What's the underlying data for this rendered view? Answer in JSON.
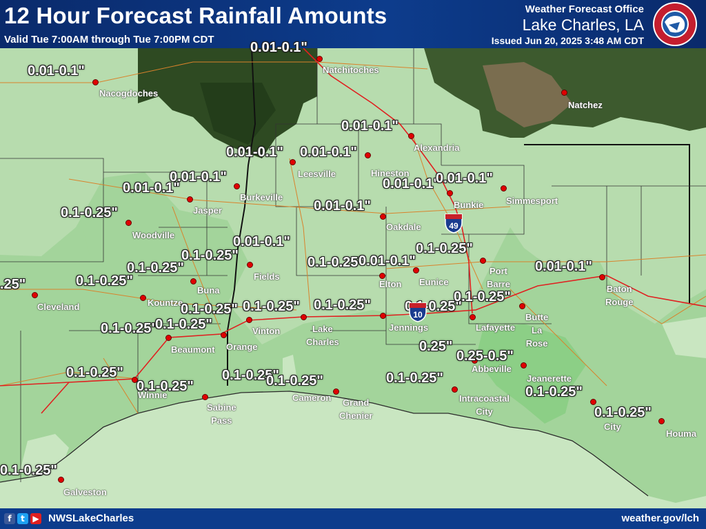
{
  "header": {
    "title": "12 Hour Forecast Rainfall Amounts",
    "subtitle": "Valid Tue 7:00AM through Tue 7:00PM CDT",
    "office_line1": "Weather Forecast Office",
    "office_line2": "Lake Charles, LA",
    "issued": "Issued Jun 20, 2025 3:48 AM CDT"
  },
  "logo": {
    "icon": "nws-logo-icon",
    "text": "NATIONAL WEATHER SERVICE"
  },
  "footer": {
    "social_icons": [
      "facebook-icon",
      "twitter-icon",
      "youtube-icon"
    ],
    "handle": "NWSLakeCharles",
    "site": "weather.gov/lch"
  },
  "colors": {
    "header": "#0d3c8c",
    "light_rain": "#b7dcae",
    "moderate_rain": "#8ccf86",
    "heavier_rain": "#6fbf6a",
    "city_dot": "#e00000"
  },
  "cities": [
    "Natchitoches",
    "Nacogdoches",
    "Natchez",
    "Alexandria",
    "Leesville",
    "Hineston",
    "Burkeville",
    "Simmesport",
    "Bunkie",
    "Jasper",
    "Oakdale",
    "Woodville",
    "Fields",
    "Port\nBarre",
    "Eunice",
    "Elton",
    "Baton\nRouge",
    "Buna",
    "Cleveland",
    "Kountze",
    "Butte\nLa\nRose",
    "Lafayette",
    "Jennings",
    "Vinton",
    "Lake\nCharles",
    "Orange",
    "Beaumont",
    "Abbeville",
    "Jeanerette",
    "Winnie",
    "Sabine\nPass",
    "Cameron",
    "Grand\nChenier",
    "Intracoastal\nCity",
    "City",
    "Houma",
    "Galveston"
  ],
  "rain_labels": [
    "0.01-0.1\"",
    "0.01-0.1\"",
    "0.01-0.1\"",
    "0.01-0.1\"",
    "0.01-0.1\"",
    "0.01-0.1\"",
    "0.01-0.1\"",
    "0.01-0.1\"",
    "0.01-0.1\"",
    "0.1-0.25\"",
    "0.01-0.1\"",
    "0.1-0.25\"",
    "0.1-0.25\"",
    "0.01-0.1\"",
    "0.1-0.25\"",
    "0.1-0.25\"",
    "0.01-0.1\"",
    ".25\"",
    "0.1-0.25\"",
    "0.1-0.25\"",
    "0.1-0.25\"",
    "0.1-0.25\"",
    "0.1-0.25\"",
    "0.1-0.25\"",
    "0.1-0.25\"",
    "0.1-0.25\"",
    "0.1-0.25\"",
    "0.25\"",
    "0.25-0.5\"",
    "0.1-0.25\"",
    "0.1-0.25\"",
    "0.1-0.25\"",
    "0.1-0.25\"",
    "0.1-0.25\"",
    "0.1-0.25\"",
    "0.1-0.25\"",
    "0.01-0.1\"",
    "0.1-0.25\""
  ],
  "shields": [
    "49",
    "10"
  ]
}
